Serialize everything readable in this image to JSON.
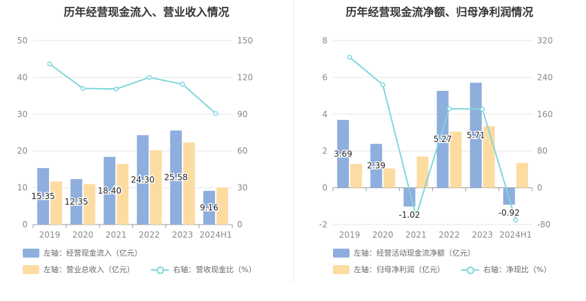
{
  "chart_data": [
    {
      "type": "bar+line",
      "title": "历年经营现金流入、营业收入情况",
      "categories": [
        "2019",
        "2020",
        "2021",
        "2022",
        "2023",
        "2024H1"
      ],
      "left_axis": {
        "min": 0,
        "max": 50,
        "ticks": [
          0,
          10,
          20,
          30,
          40,
          50
        ]
      },
      "right_axis": {
        "min": 0,
        "max": 150,
        "ticks": [
          0,
          30,
          60,
          90,
          120,
          150
        ]
      },
      "series": [
        {
          "name": "左轴：经营现金流入（亿元）",
          "axis": "left",
          "kind": "bar",
          "color": "#8eaedd",
          "values": [
            15.35,
            12.35,
            18.4,
            24.3,
            25.58,
            9.16
          ],
          "labels": [
            "15.35",
            "12.35",
            "18.40",
            "24.30",
            "25.58",
            "9.16"
          ]
        },
        {
          "name": "左轴：营业总收入（亿元）",
          "axis": "left",
          "kind": "bar",
          "color": "#fddca2",
          "values": [
            11.7,
            11.0,
            16.5,
            20.2,
            22.3,
            10.1
          ]
        },
        {
          "name": "右轴：营收现金比（%）",
          "axis": "right",
          "kind": "line",
          "color": "#7fd6dc",
          "values": [
            131,
            111,
            110.5,
            120,
            114.5,
            90.5
          ]
        }
      ]
    },
    {
      "type": "bar+line",
      "title": "历年经营现金流净额、归母净利润情况",
      "categories": [
        "2019",
        "2020",
        "2021",
        "2022",
        "2023",
        "2024H1"
      ],
      "left_axis": {
        "min": -2,
        "max": 8,
        "ticks": [
          -2,
          0,
          2,
          4,
          6,
          8
        ]
      },
      "right_axis": {
        "min": -80,
        "max": 320,
        "ticks": [
          -80,
          0,
          80,
          160,
          240,
          320
        ]
      },
      "series": [
        {
          "name": "左轴：经营活动现金流净额（亿元）",
          "axis": "left",
          "kind": "bar",
          "color": "#8eaedd",
          "values": [
            3.69,
            2.39,
            -1.02,
            5.27,
            5.71,
            -0.92
          ],
          "labels": [
            "3.69",
            "2.39",
            "-1.02",
            "5.27",
            "5.71",
            "-0.92"
          ]
        },
        {
          "name": "左轴：归母净利润（亿元）",
          "axis": "left",
          "kind": "bar",
          "color": "#fddca2",
          "values": [
            1.3,
            1.05,
            1.7,
            3.05,
            3.35,
            1.35
          ]
        },
        {
          "name": "右轴：净现比（%）",
          "axis": "right",
          "kind": "line",
          "color": "#7fd6dc",
          "values": [
            284,
            224,
            -62,
            172,
            171,
            -70
          ]
        }
      ]
    }
  ]
}
